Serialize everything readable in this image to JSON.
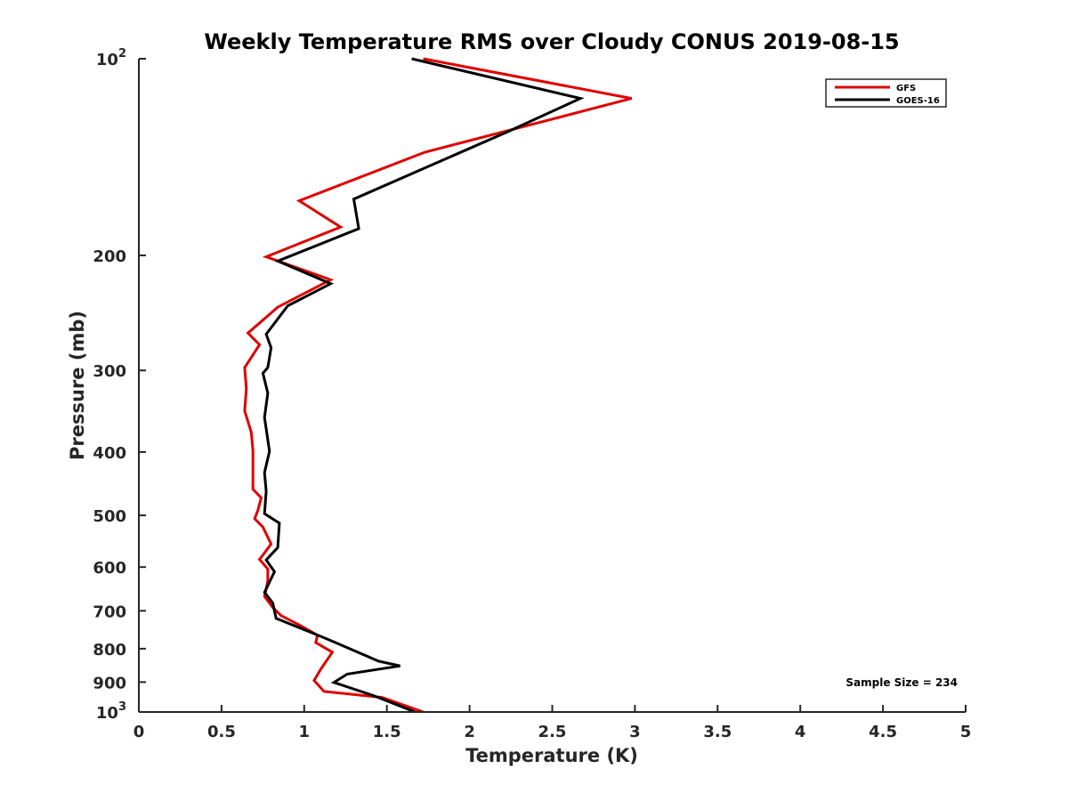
{
  "chart_data": {
    "type": "line",
    "title": "Weekly Temperature RMS over Cloudy CONUS 2019-08-15",
    "xlabel": "Temperature (K)",
    "ylabel": "Pressure (mb)",
    "xlim": [
      0,
      5
    ],
    "ylim": [
      100,
      1000
    ],
    "y_scale": "log",
    "y_reversed": true,
    "x_ticks": [
      {
        "value": 0,
        "label": "0"
      },
      {
        "value": 0.5,
        "label": "0.5"
      },
      {
        "value": 1,
        "label": "1"
      },
      {
        "value": 1.5,
        "label": "1.5"
      },
      {
        "value": 2,
        "label": "2"
      },
      {
        "value": 2.5,
        "label": "2.5"
      },
      {
        "value": 3,
        "label": "3"
      },
      {
        "value": 3.5,
        "label": "3.5"
      },
      {
        "value": 4,
        "label": "4"
      },
      {
        "value": 4.5,
        "label": "4.5"
      },
      {
        "value": 5,
        "label": "5"
      }
    ],
    "y_ticks": [
      {
        "value": 100,
        "label": "10",
        "sup": "2"
      },
      {
        "value": 200,
        "label": "200",
        "sup": ""
      },
      {
        "value": 300,
        "label": "300",
        "sup": ""
      },
      {
        "value": 400,
        "label": "400",
        "sup": ""
      },
      {
        "value": 500,
        "label": "500",
        "sup": ""
      },
      {
        "value": 600,
        "label": "600",
        "sup": ""
      },
      {
        "value": 700,
        "label": "700",
        "sup": ""
      },
      {
        "value": 800,
        "label": "800",
        "sup": ""
      },
      {
        "value": 900,
        "label": "900",
        "sup": ""
      },
      {
        "value": 1000,
        "label": "10",
        "sup": "3"
      }
    ],
    "legend_position": "top-right",
    "annotation": "Sample Size = 234",
    "series": [
      {
        "name": "GFS",
        "color": "#e00000",
        "points": [
          [
            1.72,
            100
          ],
          [
            2.98,
            115
          ],
          [
            1.73,
            139
          ],
          [
            0.97,
            165
          ],
          [
            1.22,
            181
          ],
          [
            0.77,
            201
          ],
          [
            1.16,
            218
          ],
          [
            0.84,
            240
          ],
          [
            0.66,
            263
          ],
          [
            0.73,
            274
          ],
          [
            0.64,
            297
          ],
          [
            0.65,
            320
          ],
          [
            0.64,
            346
          ],
          [
            0.68,
            373
          ],
          [
            0.69,
            398
          ],
          [
            0.69,
            430
          ],
          [
            0.69,
            456
          ],
          [
            0.74,
            470
          ],
          [
            0.72,
            491
          ],
          [
            0.7,
            506
          ],
          [
            0.75,
            521
          ],
          [
            0.8,
            553
          ],
          [
            0.75,
            575
          ],
          [
            0.73,
            584
          ],
          [
            0.78,
            604
          ],
          [
            0.78,
            630
          ],
          [
            0.76,
            665
          ],
          [
            0.81,
            692
          ],
          [
            0.86,
            712
          ],
          [
            0.98,
            738
          ],
          [
            1.08,
            763
          ],
          [
            1.07,
            783
          ],
          [
            1.17,
            810
          ],
          [
            1.1,
            860
          ],
          [
            1.06,
            895
          ],
          [
            1.12,
            930
          ],
          [
            1.47,
            950
          ],
          [
            1.72,
            1000
          ]
        ]
      },
      {
        "name": "GOES-16",
        "color": "#000000",
        "points": [
          [
            1.65,
            100
          ],
          [
            2.67,
            115
          ],
          [
            2.24,
            129
          ],
          [
            1.3,
            164
          ],
          [
            1.33,
            182
          ],
          [
            0.84,
            204
          ],
          [
            1.16,
            221
          ],
          [
            0.9,
            239
          ],
          [
            0.77,
            264
          ],
          [
            0.8,
            277
          ],
          [
            0.78,
            297
          ],
          [
            0.75,
            303
          ],
          [
            0.78,
            325
          ],
          [
            0.76,
            354
          ],
          [
            0.79,
            399
          ],
          [
            0.76,
            430
          ],
          [
            0.77,
            459
          ],
          [
            0.76,
            497
          ],
          [
            0.85,
            514
          ],
          [
            0.84,
            560
          ],
          [
            0.77,
            585
          ],
          [
            0.82,
            610
          ],
          [
            0.76,
            656
          ],
          [
            0.81,
            681
          ],
          [
            0.83,
            719
          ],
          [
            1.1,
            766
          ],
          [
            1.18,
            781
          ],
          [
            1.45,
            836
          ],
          [
            1.58,
            850
          ],
          [
            1.26,
            875
          ],
          [
            1.18,
            901
          ],
          [
            1.42,
            944
          ],
          [
            1.67,
            1000
          ]
        ]
      }
    ]
  }
}
